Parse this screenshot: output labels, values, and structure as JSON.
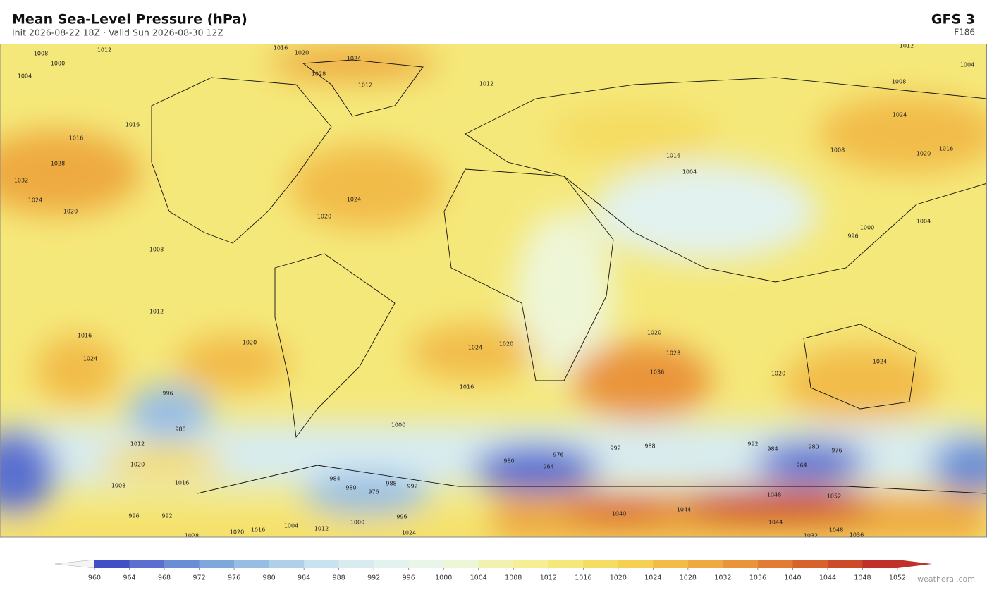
{
  "header": {
    "title": "Mean Sea-Level Pressure  (hPa)",
    "subtitle": "Init 2026-08-22 18Z  ·  Valid Sun 2026-08-30 12Z",
    "model": "GFS  3",
    "forecast_hour": "F186"
  },
  "colorbar": {
    "levels": [
      960,
      964,
      968,
      972,
      976,
      980,
      984,
      988,
      992,
      996,
      1000,
      1004,
      1008,
      1012,
      1016,
      1020,
      1024,
      1028,
      1032,
      1036,
      1040,
      1044,
      1048,
      1052
    ],
    "colors": [
      "#3f4fc4",
      "#5a6fd0",
      "#6a8ed6",
      "#7ea8dc",
      "#97bde4",
      "#b0d0ea",
      "#c8e2ef",
      "#d8ecf0",
      "#e2f2ef",
      "#e9f5e8",
      "#eef6d8",
      "#f2f2b0",
      "#f5ee94",
      "#f5e87a",
      "#f5dc62",
      "#f5d052",
      "#f2bc48",
      "#eeaa40",
      "#ea943a",
      "#e27c34",
      "#d8622e",
      "#cc4a2a",
      "#c03028"
    ],
    "under_color": "#f4f4f4",
    "over_color": "#c03028"
  },
  "map": {
    "contour_labels": [
      1008,
      1012,
      1016,
      1020,
      1024,
      1028,
      1012,
      1012,
      1004,
      1000,
      1016,
      1016,
      1028,
      1032,
      1024,
      1020,
      1024,
      1020,
      1008,
      1012,
      1016,
      1020,
      1024,
      1024,
      1020,
      1020,
      1028,
      1036,
      1024,
      1020,
      1016,
      996,
      988,
      1000,
      1012,
      1020,
      1016,
      1008,
      980,
      964,
      976,
      992,
      988,
      992,
      984,
      980,
      976,
      964,
      1048,
      1052,
      1044,
      1040,
      1044,
      1048,
      1032,
      1036,
      1024,
      1028,
      1020,
      1016,
      1004,
      1012,
      1000,
      996,
      992,
      996,
      984,
      980,
      976,
      988,
      992,
      1000,
      1004,
      996,
      1004,
      1008,
      1016,
      1024,
      1020,
      1016,
      1012,
      1008,
      1004
    ]
  },
  "credit": "weatherai.com"
}
